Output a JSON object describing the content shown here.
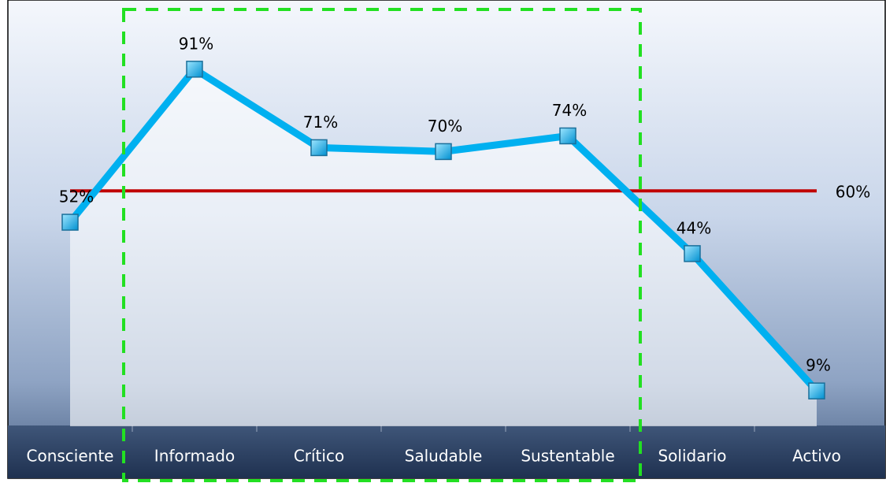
{
  "chart_data": {
    "type": "line",
    "categories": [
      "Consciente",
      "Informado",
      "Crítico",
      "Saludable",
      "Sustentable",
      "Solidario",
      "Activo"
    ],
    "values": [
      52,
      91,
      71,
      70,
      74,
      44,
      9
    ],
    "value_labels": [
      "52%",
      "91%",
      "71%",
      "70%",
      "74%",
      "44%",
      "9%"
    ],
    "color": "#00b0f0",
    "ylim": [
      0,
      100
    ],
    "reference_line": {
      "value": 60,
      "label": "60%",
      "color": "#c00000"
    }
  }
}
